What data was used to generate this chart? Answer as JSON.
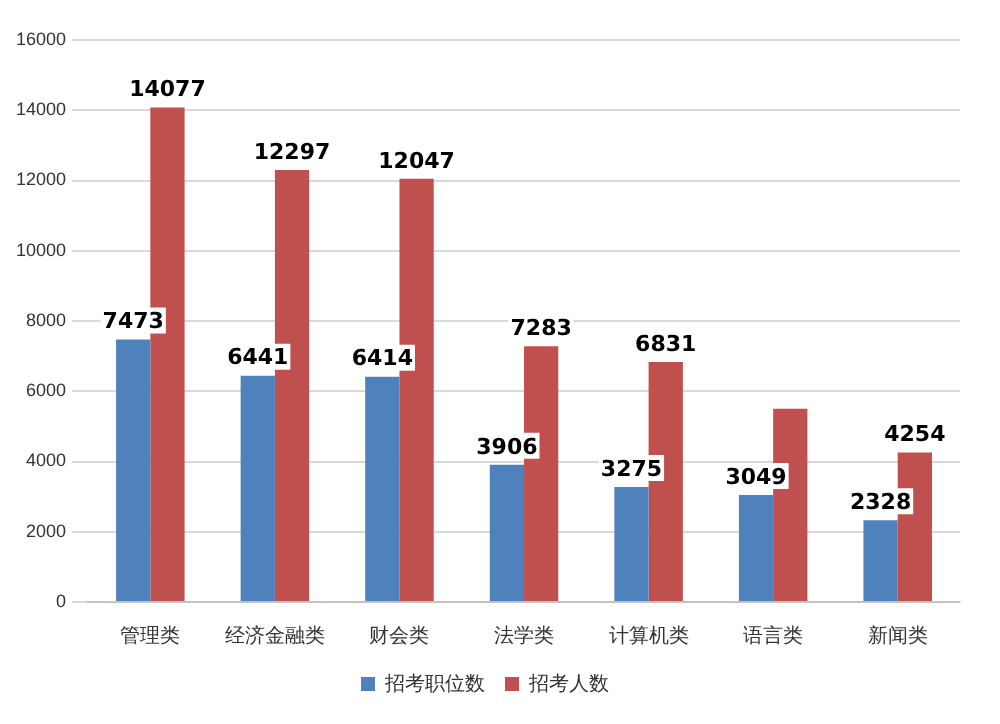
{
  "chart_data": {
    "type": "bar",
    "categories": [
      "管理类",
      "经济金融类",
      "财会类",
      "法学类",
      "计算机类",
      "语言类",
      "新闻类"
    ],
    "series": [
      {
        "name": "招考职位数",
        "color": "#4f81bd",
        "values": [
          7473,
          6441,
          6414,
          3906,
          3275,
          3049,
          2328
        ],
        "value_labels": [
          "7473",
          "6441",
          "6414",
          "3906",
          "3275",
          "3049",
          "2328"
        ]
      },
      {
        "name": "招考人数",
        "color": "#c0504d",
        "values": [
          14077,
          12297,
          12047,
          7283,
          6831,
          5500,
          4254
        ],
        "value_labels": [
          "14077",
          "12297",
          "12047",
          "7283",
          "6831",
          null,
          "4254"
        ]
      }
    ],
    "ylim": [
      0,
      16000
    ],
    "yticks": [
      0,
      2000,
      4000,
      6000,
      8000,
      10000,
      12000,
      14000,
      16000
    ],
    "grid": "y",
    "legend": "bottom"
  }
}
